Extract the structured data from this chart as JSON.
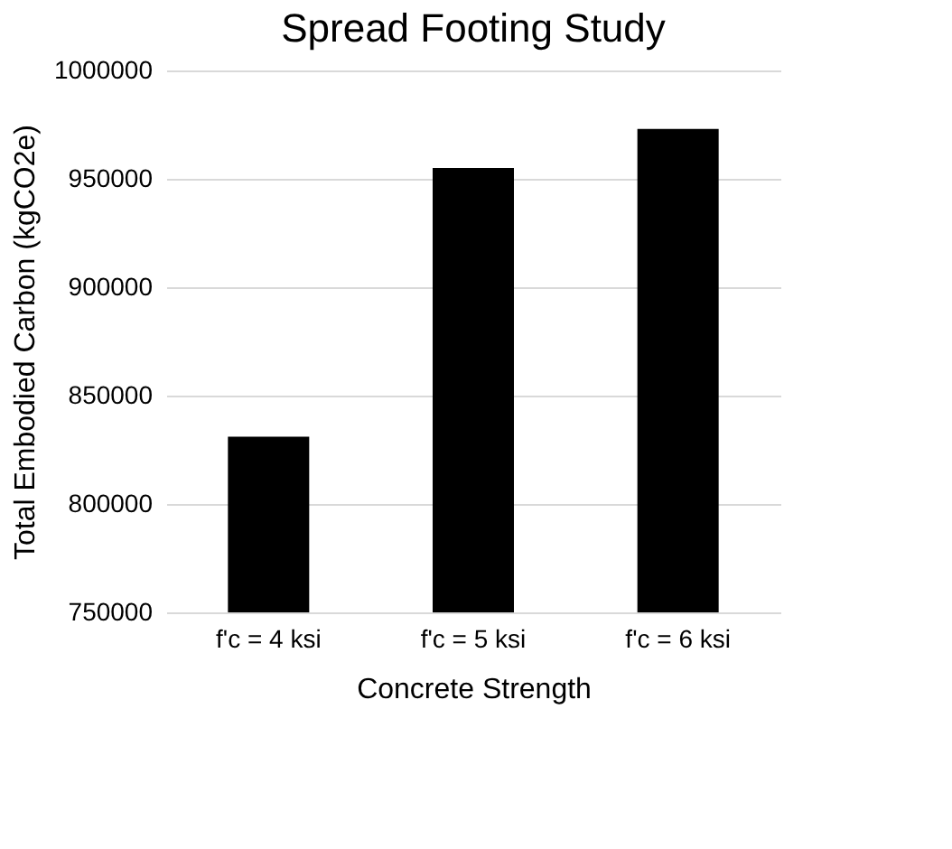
{
  "chart_data": {
    "type": "bar",
    "title": "Spread Footing Study",
    "xlabel": "Concrete Strength",
    "ylabel": "Total Embodied Carbon (kgCO2e)",
    "categories": [
      "f'c = 4 ksi",
      "f'c = 5 ksi",
      "f'c = 6 ksi"
    ],
    "values": [
      831000,
      955000,
      973000
    ],
    "color": "#000000",
    "ylim": [
      750000,
      1000000
    ],
    "yticks": [
      750000,
      800000,
      850000,
      900000,
      950000,
      1000000
    ],
    "grid": "y"
  }
}
